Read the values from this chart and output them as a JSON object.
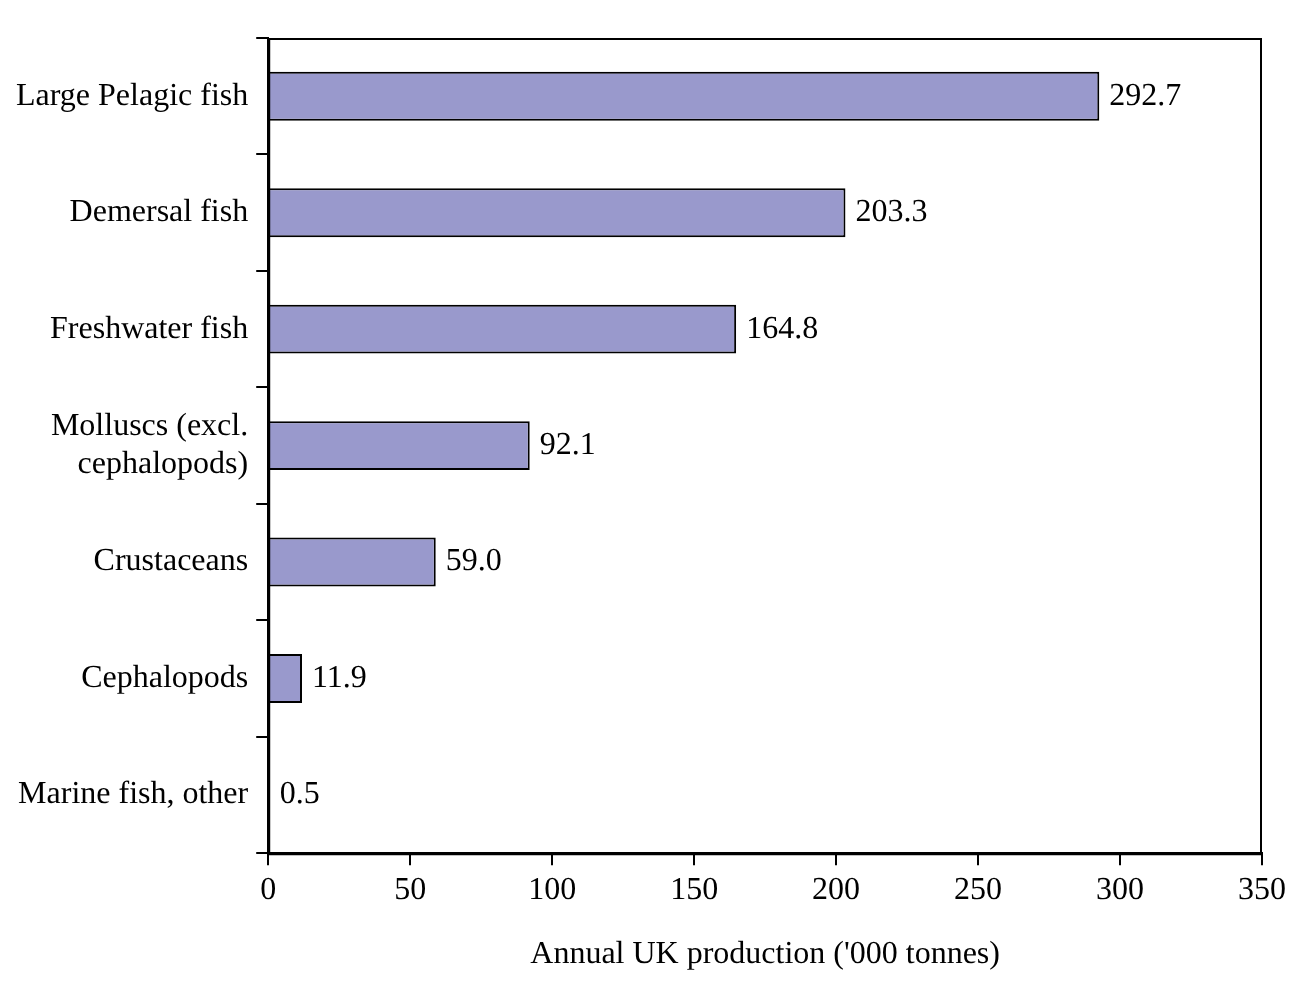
{
  "chart_data": {
    "type": "bar",
    "orientation": "horizontal",
    "xlabel": "Annual UK production ('000 tonnes)",
    "categories": [
      "Large Pelagic fish",
      "Demersal fish",
      "Freshwater fish",
      "Molluscs (excl. cephalopods)",
      "Crustaceans",
      "Cephalopods",
      "Marine fish, other"
    ],
    "values": [
      292.7,
      203.3,
      164.8,
      92.1,
      59.0,
      11.9,
      0.5
    ],
    "value_labels": [
      "292.7",
      "203.3",
      "164.8",
      "92.1",
      "59.0",
      "11.9",
      "0.5"
    ],
    "color": "#9999cc",
    "xlim": [
      0,
      350
    ],
    "xticks": [
      0,
      50,
      100,
      150,
      200,
      250,
      300,
      350
    ],
    "grid": false,
    "legend": false
  }
}
